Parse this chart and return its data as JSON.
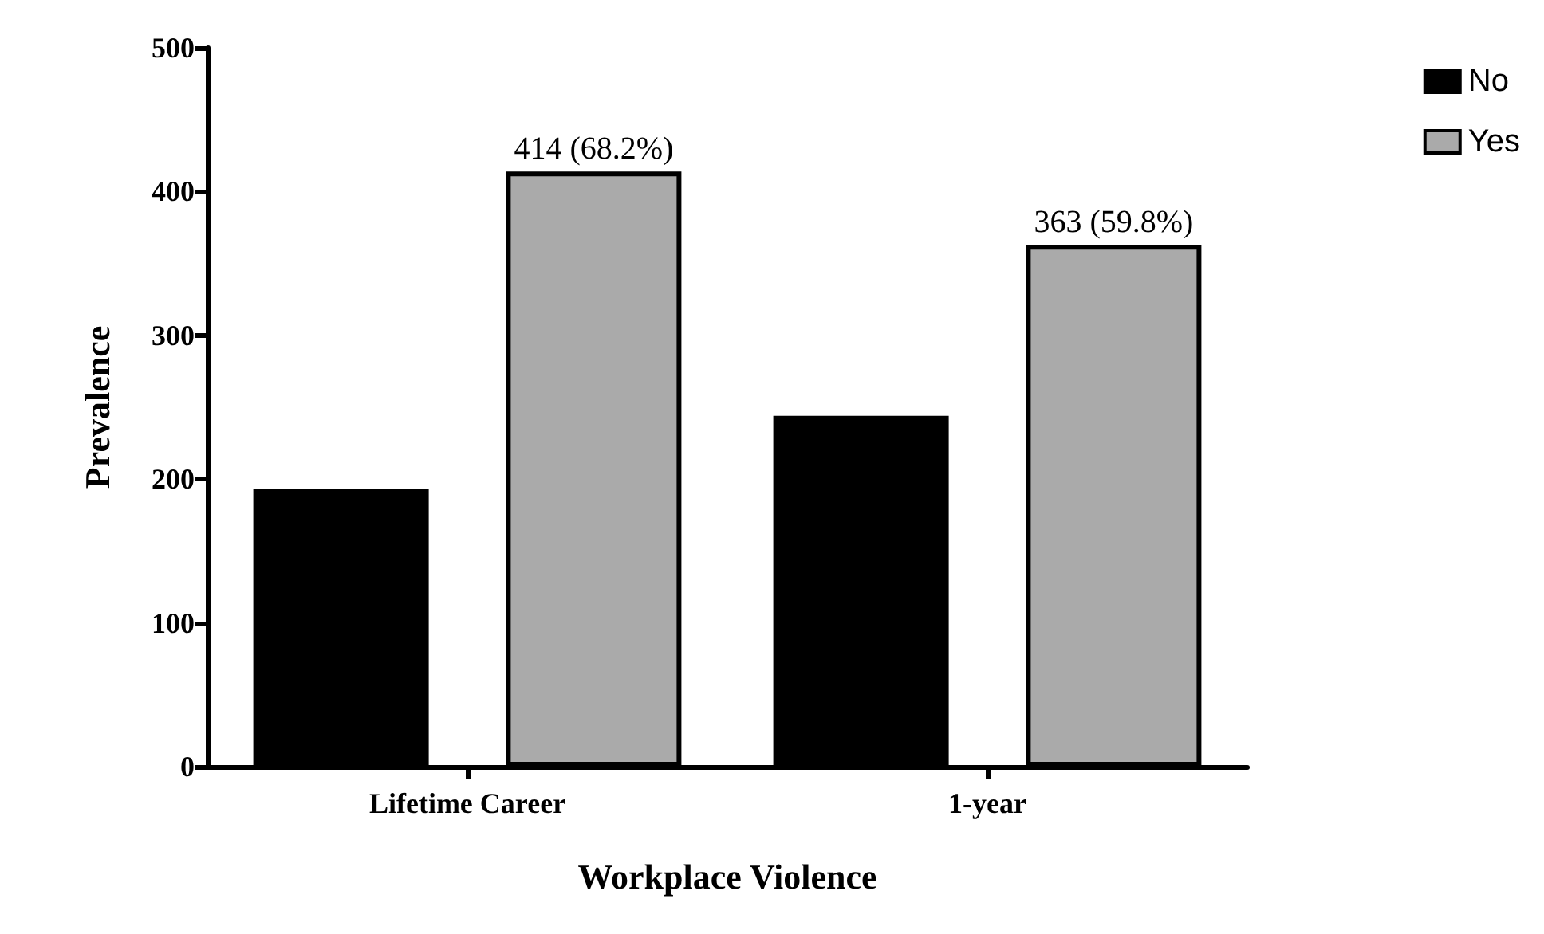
{
  "chart_data": {
    "type": "bar",
    "xlabel": "Workplace Violence",
    "ylabel": "Prevalence",
    "categories": [
      "Lifetime Career",
      "1-year"
    ],
    "series": [
      {
        "name": "No",
        "color": "#000000",
        "values": [
          193,
          244
        ]
      },
      {
        "name": "Yes",
        "color": "#aaaaaa",
        "values": [
          414,
          363
        ],
        "value_labels": [
          "414 (68.2%)",
          "363 (59.8%)"
        ]
      }
    ],
    "ylim": [
      0,
      500
    ],
    "yticks": [
      0,
      100,
      200,
      300,
      400,
      500
    ],
    "grid": false,
    "legend": "top right"
  }
}
